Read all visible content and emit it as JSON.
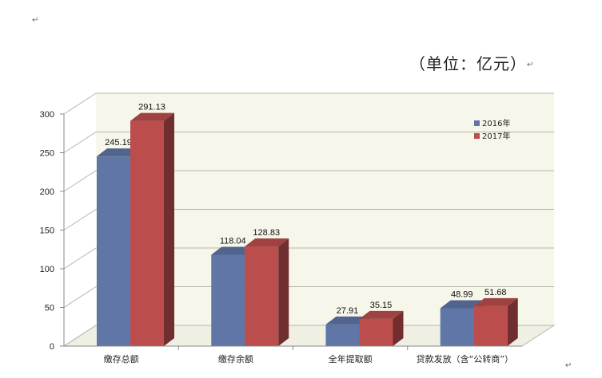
{
  "marks": {
    "return_symbol": "↵"
  },
  "unit_label": "（单位：亿元）",
  "chart_data": {
    "type": "bar",
    "categories": [
      "缴存总额",
      "缴存余额",
      "全年提取额",
      "贷款发放（含“公转商”）"
    ],
    "series": [
      {
        "name": "2016年",
        "values": [
          245.19,
          118.04,
          27.91,
          48.99
        ],
        "color": "#5f76a7"
      },
      {
        "name": "2017年",
        "values": [
          291.13,
          128.83,
          35.15,
          51.68
        ],
        "color": "#bb4e4c"
      }
    ],
    "data_labels": [
      [
        "245.19",
        "118.04",
        "27.91",
        "48.99"
      ],
      [
        "291.13",
        "128.83",
        "35.15",
        "51.68"
      ]
    ],
    "yticks": [
      "0",
      "50",
      "100",
      "150",
      "200",
      "250",
      "300"
    ],
    "ylim": [
      0,
      300
    ],
    "grid": true,
    "legend_position": "top-right",
    "three_d": true,
    "colors": {
      "wall": "#f6f6ea",
      "grid": "#b5b5a8",
      "axis": "#888888"
    }
  }
}
